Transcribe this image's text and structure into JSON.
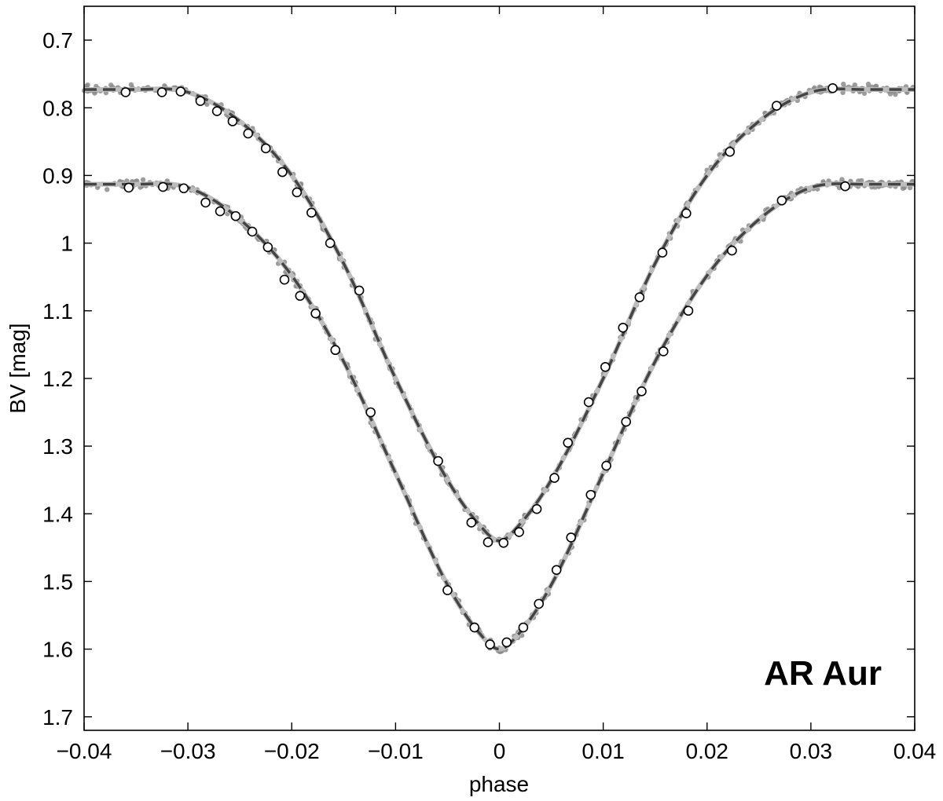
{
  "chart_data": {
    "type": "scatter",
    "title": "",
    "xlabel": "phase",
    "ylabel": "BV  [mag]",
    "xlim": [
      -0.04,
      0.04
    ],
    "ylim": [
      1.72,
      0.65
    ],
    "y_inverted": true,
    "x_ticks": [
      "−0.04",
      "−0.03",
      "−0.02",
      "−0.01",
      "0",
      "0.01",
      "0.02",
      "0.03",
      "0.04"
    ],
    "x_tick_values": [
      -0.04,
      -0.03,
      -0.02,
      -0.01,
      0,
      0.01,
      0.02,
      0.03,
      0.04
    ],
    "y_ticks": [
      "0.7",
      "0.8",
      "0.9",
      "1",
      "1.1",
      "1.2",
      "1.3",
      "1.4",
      "1.5",
      "1.6",
      "1.7"
    ],
    "y_tick_values": [
      0.7,
      0.8,
      0.9,
      1.0,
      1.1,
      1.2,
      1.3,
      1.4,
      1.5,
      1.6,
      1.7
    ],
    "grid": false,
    "annotation": "AR Aur",
    "colors": {
      "model_solid": "#bdbdbd",
      "model_dashed": "#444444",
      "raw_points": "#8c8c8c",
      "normal_points_fill": "#ffffff",
      "normal_points_edge": "#000000"
    },
    "series": [
      {
        "band": "V",
        "kind": "normal_points",
        "x": [
          -0.036,
          -0.0325,
          -0.0307,
          -0.0288,
          -0.0272,
          -0.0257,
          -0.0242,
          -0.0225,
          -0.0209,
          -0.0195,
          -0.0181,
          -0.0163,
          -0.0135,
          -0.0059,
          -0.0027,
          -0.0011,
          0.0004,
          0.0019,
          0.0036,
          0.0053,
          0.0066,
          0.0086,
          0.0102,
          0.0119,
          0.0135,
          0.0157,
          0.018,
          0.0222,
          0.0267,
          0.0321
        ],
        "y": [
          0.777,
          0.777,
          0.776,
          0.79,
          0.805,
          0.82,
          0.838,
          0.86,
          0.895,
          0.925,
          0.955,
          1.0,
          1.07,
          1.322,
          1.413,
          1.442,
          1.443,
          1.427,
          1.393,
          1.347,
          1.295,
          1.235,
          1.183,
          1.125,
          1.08,
          1.014,
          0.956,
          0.865,
          0.797,
          0.771
        ]
      },
      {
        "band": "B",
        "kind": "normal_points",
        "x": [
          -0.0357,
          -0.0324,
          -0.0304,
          -0.0283,
          -0.0269,
          -0.0254,
          -0.0238,
          -0.0223,
          -0.0207,
          -0.0192,
          -0.0177,
          -0.0158,
          -0.0124,
          -0.005,
          -0.0024,
          -0.0009,
          0.0007,
          0.0023,
          0.0038,
          0.0055,
          0.0069,
          0.0088,
          0.0103,
          0.0122,
          0.0137,
          0.0158,
          0.0182,
          0.0224,
          0.0272,
          0.0333
        ],
        "y": [
          0.918,
          0.917,
          0.919,
          0.94,
          0.953,
          0.96,
          0.983,
          1.006,
          1.054,
          1.078,
          1.104,
          1.158,
          1.25,
          1.513,
          1.568,
          1.593,
          1.59,
          1.568,
          1.533,
          1.483,
          1.435,
          1.372,
          1.329,
          1.264,
          1.219,
          1.16,
          1.1,
          1.011,
          0.937,
          0.916
        ]
      },
      {
        "band": "V",
        "kind": "model",
        "x": [
          -0.04,
          -0.035,
          -0.03,
          -0.025,
          -0.02,
          -0.015,
          -0.01,
          -0.005,
          -0.002,
          0,
          0.002,
          0.005,
          0.01,
          0.015,
          0.02,
          0.025,
          0.03,
          0.035,
          0.04
        ],
        "y": [
          0.773,
          0.773,
          0.777,
          0.82,
          0.9,
          1.03,
          1.2,
          1.35,
          1.415,
          1.44,
          1.415,
          1.35,
          1.2,
          1.03,
          0.9,
          0.82,
          0.777,
          0.773,
          0.773
        ]
      },
      {
        "band": "B",
        "kind": "model",
        "x": [
          -0.04,
          -0.035,
          -0.03,
          -0.025,
          -0.02,
          -0.015,
          -0.01,
          -0.005,
          -0.002,
          0,
          0.002,
          0.005,
          0.01,
          0.015,
          0.02,
          0.025,
          0.03,
          0.035,
          0.04
        ],
        "y": [
          0.913,
          0.913,
          0.918,
          0.965,
          1.048,
          1.175,
          1.34,
          1.505,
          1.575,
          1.6,
          1.575,
          1.505,
          1.34,
          1.175,
          1.048,
          0.965,
          0.918,
          0.913,
          0.913
        ]
      }
    ]
  }
}
